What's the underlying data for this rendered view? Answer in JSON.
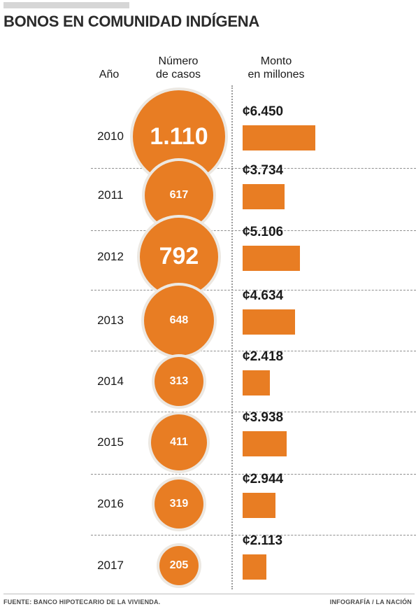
{
  "title": "BONOS EN COMUNIDAD INDÍGENA",
  "headers": {
    "year": "Año",
    "cases": [
      "Número",
      "de casos"
    ],
    "amount": [
      "Monto",
      "en millones"
    ]
  },
  "colors": {
    "accent": "#e87d23",
    "halo": "#ece8e2",
    "text": "#1a1a1a"
  },
  "chart_data": {
    "type": "table",
    "title": "BONOS EN COMUNIDAD INDÍGENA",
    "columns": [
      "Año",
      "Número de casos",
      "Monto en millones"
    ],
    "rows": [
      {
        "year": "2010",
        "cases": 1110,
        "cases_label": "1.110",
        "amount": 6450,
        "amount_label": "¢6.450"
      },
      {
        "year": "2011",
        "cases": 617,
        "cases_label": "617",
        "amount": 3734,
        "amount_label": "¢3.734"
      },
      {
        "year": "2012",
        "cases": 792,
        "cases_label": "792",
        "amount": 5106,
        "amount_label": "¢5.106"
      },
      {
        "year": "2013",
        "cases": 648,
        "cases_label": "648",
        "amount": 4634,
        "amount_label": "¢4.634"
      },
      {
        "year": "2014",
        "cases": 313,
        "cases_label": "313",
        "amount": 2418,
        "amount_label": "¢2.418"
      },
      {
        "year": "2015",
        "cases": 411,
        "cases_label": "411",
        "amount": 3938,
        "amount_label": "¢3.938"
      },
      {
        "year": "2016",
        "cases": 319,
        "cases_label": "319",
        "amount": 2944,
        "amount_label": "¢2.944"
      },
      {
        "year": "2017",
        "cases": 205,
        "cases_label": "205",
        "amount": 2113,
        "amount_label": "¢2.113"
      }
    ]
  },
  "footer": {
    "source": "FUENTE: BANCO HIPOTECARIO DE LA VIVIENDA.",
    "credit": "INFOGRAFÍA / LA NACIÓN"
  }
}
